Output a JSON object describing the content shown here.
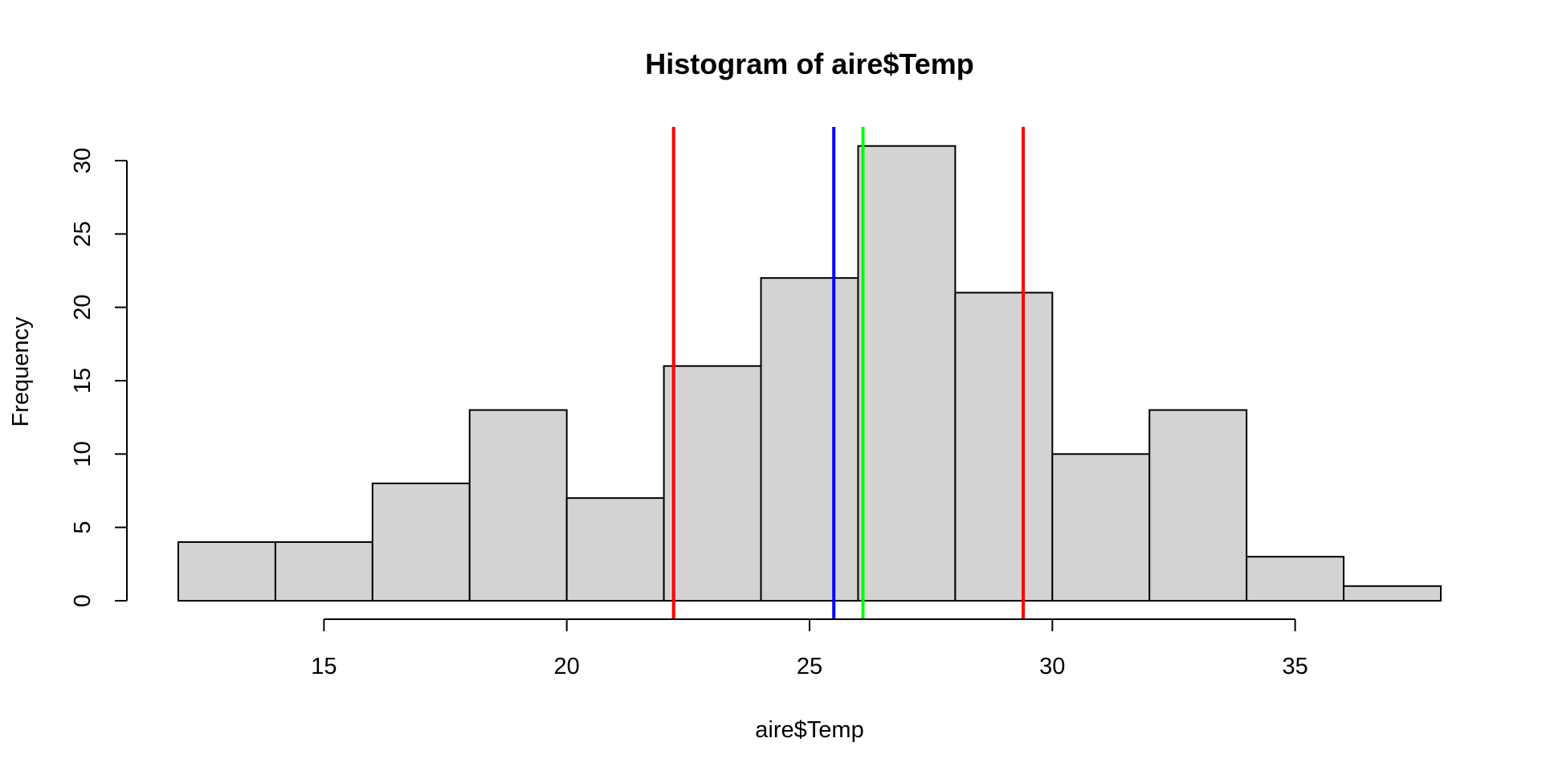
{
  "chart_data": {
    "type": "bar",
    "title": "Histogram of aire$Temp",
    "xlabel": "aire$Temp",
    "ylabel": "Frequency",
    "bins": [
      {
        "start": 12,
        "end": 14,
        "value": 4
      },
      {
        "start": 14,
        "end": 16,
        "value": 4
      },
      {
        "start": 16,
        "end": 18,
        "value": 8
      },
      {
        "start": 18,
        "end": 20,
        "value": 13
      },
      {
        "start": 20,
        "end": 22,
        "value": 7
      },
      {
        "start": 22,
        "end": 24,
        "value": 16
      },
      {
        "start": 24,
        "end": 26,
        "value": 22
      },
      {
        "start": 26,
        "end": 28,
        "value": 31
      },
      {
        "start": 28,
        "end": 30,
        "value": 21
      },
      {
        "start": 30,
        "end": 32,
        "value": 10
      },
      {
        "start": 32,
        "end": 34,
        "value": 13
      },
      {
        "start": 34,
        "end": 36,
        "value": 3
      },
      {
        "start": 36,
        "end": 38,
        "value": 1
      }
    ],
    "xticks": [
      15,
      20,
      25,
      30,
      35
    ],
    "yticks": [
      0,
      5,
      10,
      15,
      20,
      25,
      30
    ],
    "xlim": [
      12,
      38
    ],
    "ylim": [
      0,
      32
    ],
    "vertical_lines": [
      {
        "x": 22.2,
        "color": "#ff0000"
      },
      {
        "x": 25.5,
        "color": "#0000ff"
      },
      {
        "x": 26.1,
        "color": "#00ff00"
      },
      {
        "x": 29.4,
        "color": "#ff0000"
      }
    ],
    "bar_color": "#d3d3d3",
    "grid": false
  }
}
